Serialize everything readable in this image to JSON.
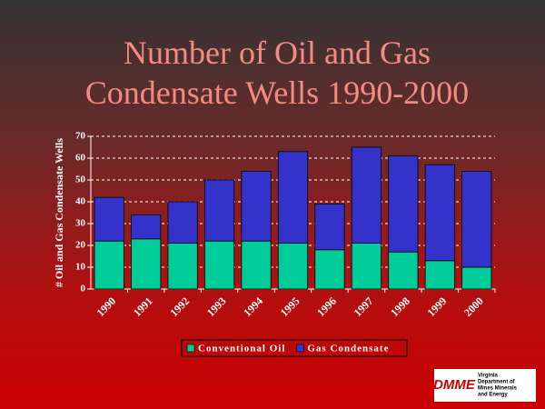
{
  "chart_data": {
    "type": "stacked_bar",
    "title": "Number of Oil and Gas Condensate Wells 1990-2000",
    "y_label": "# Oil and Gas Condensate Wells",
    "categories": [
      "1990",
      "1991",
      "1992",
      "1993",
      "1994",
      "1995",
      "1996",
      "1997",
      "1998",
      "1999",
      "2000"
    ],
    "series": [
      {
        "name": "Conventional Oil",
        "color": "#00cc99",
        "values": [
          22,
          23,
          21,
          22,
          22,
          21,
          18,
          21,
          17,
          13,
          10
        ]
      },
      {
        "name": "Gas Condensate",
        "color": "#3333cc",
        "values": [
          20,
          11,
          19,
          28,
          32,
          42,
          21,
          44,
          44,
          44,
          44
        ]
      }
    ],
    "ylim": [
      0,
      70
    ],
    "yticks": [
      0,
      10,
      20,
      30,
      40,
      50,
      60,
      70
    ],
    "grid": true,
    "legend": "bottom"
  },
  "logo": {
    "mark": "DMME",
    "lines": [
      "Virginia",
      "Department of",
      "Mines Minerals",
      "and Energy"
    ]
  }
}
